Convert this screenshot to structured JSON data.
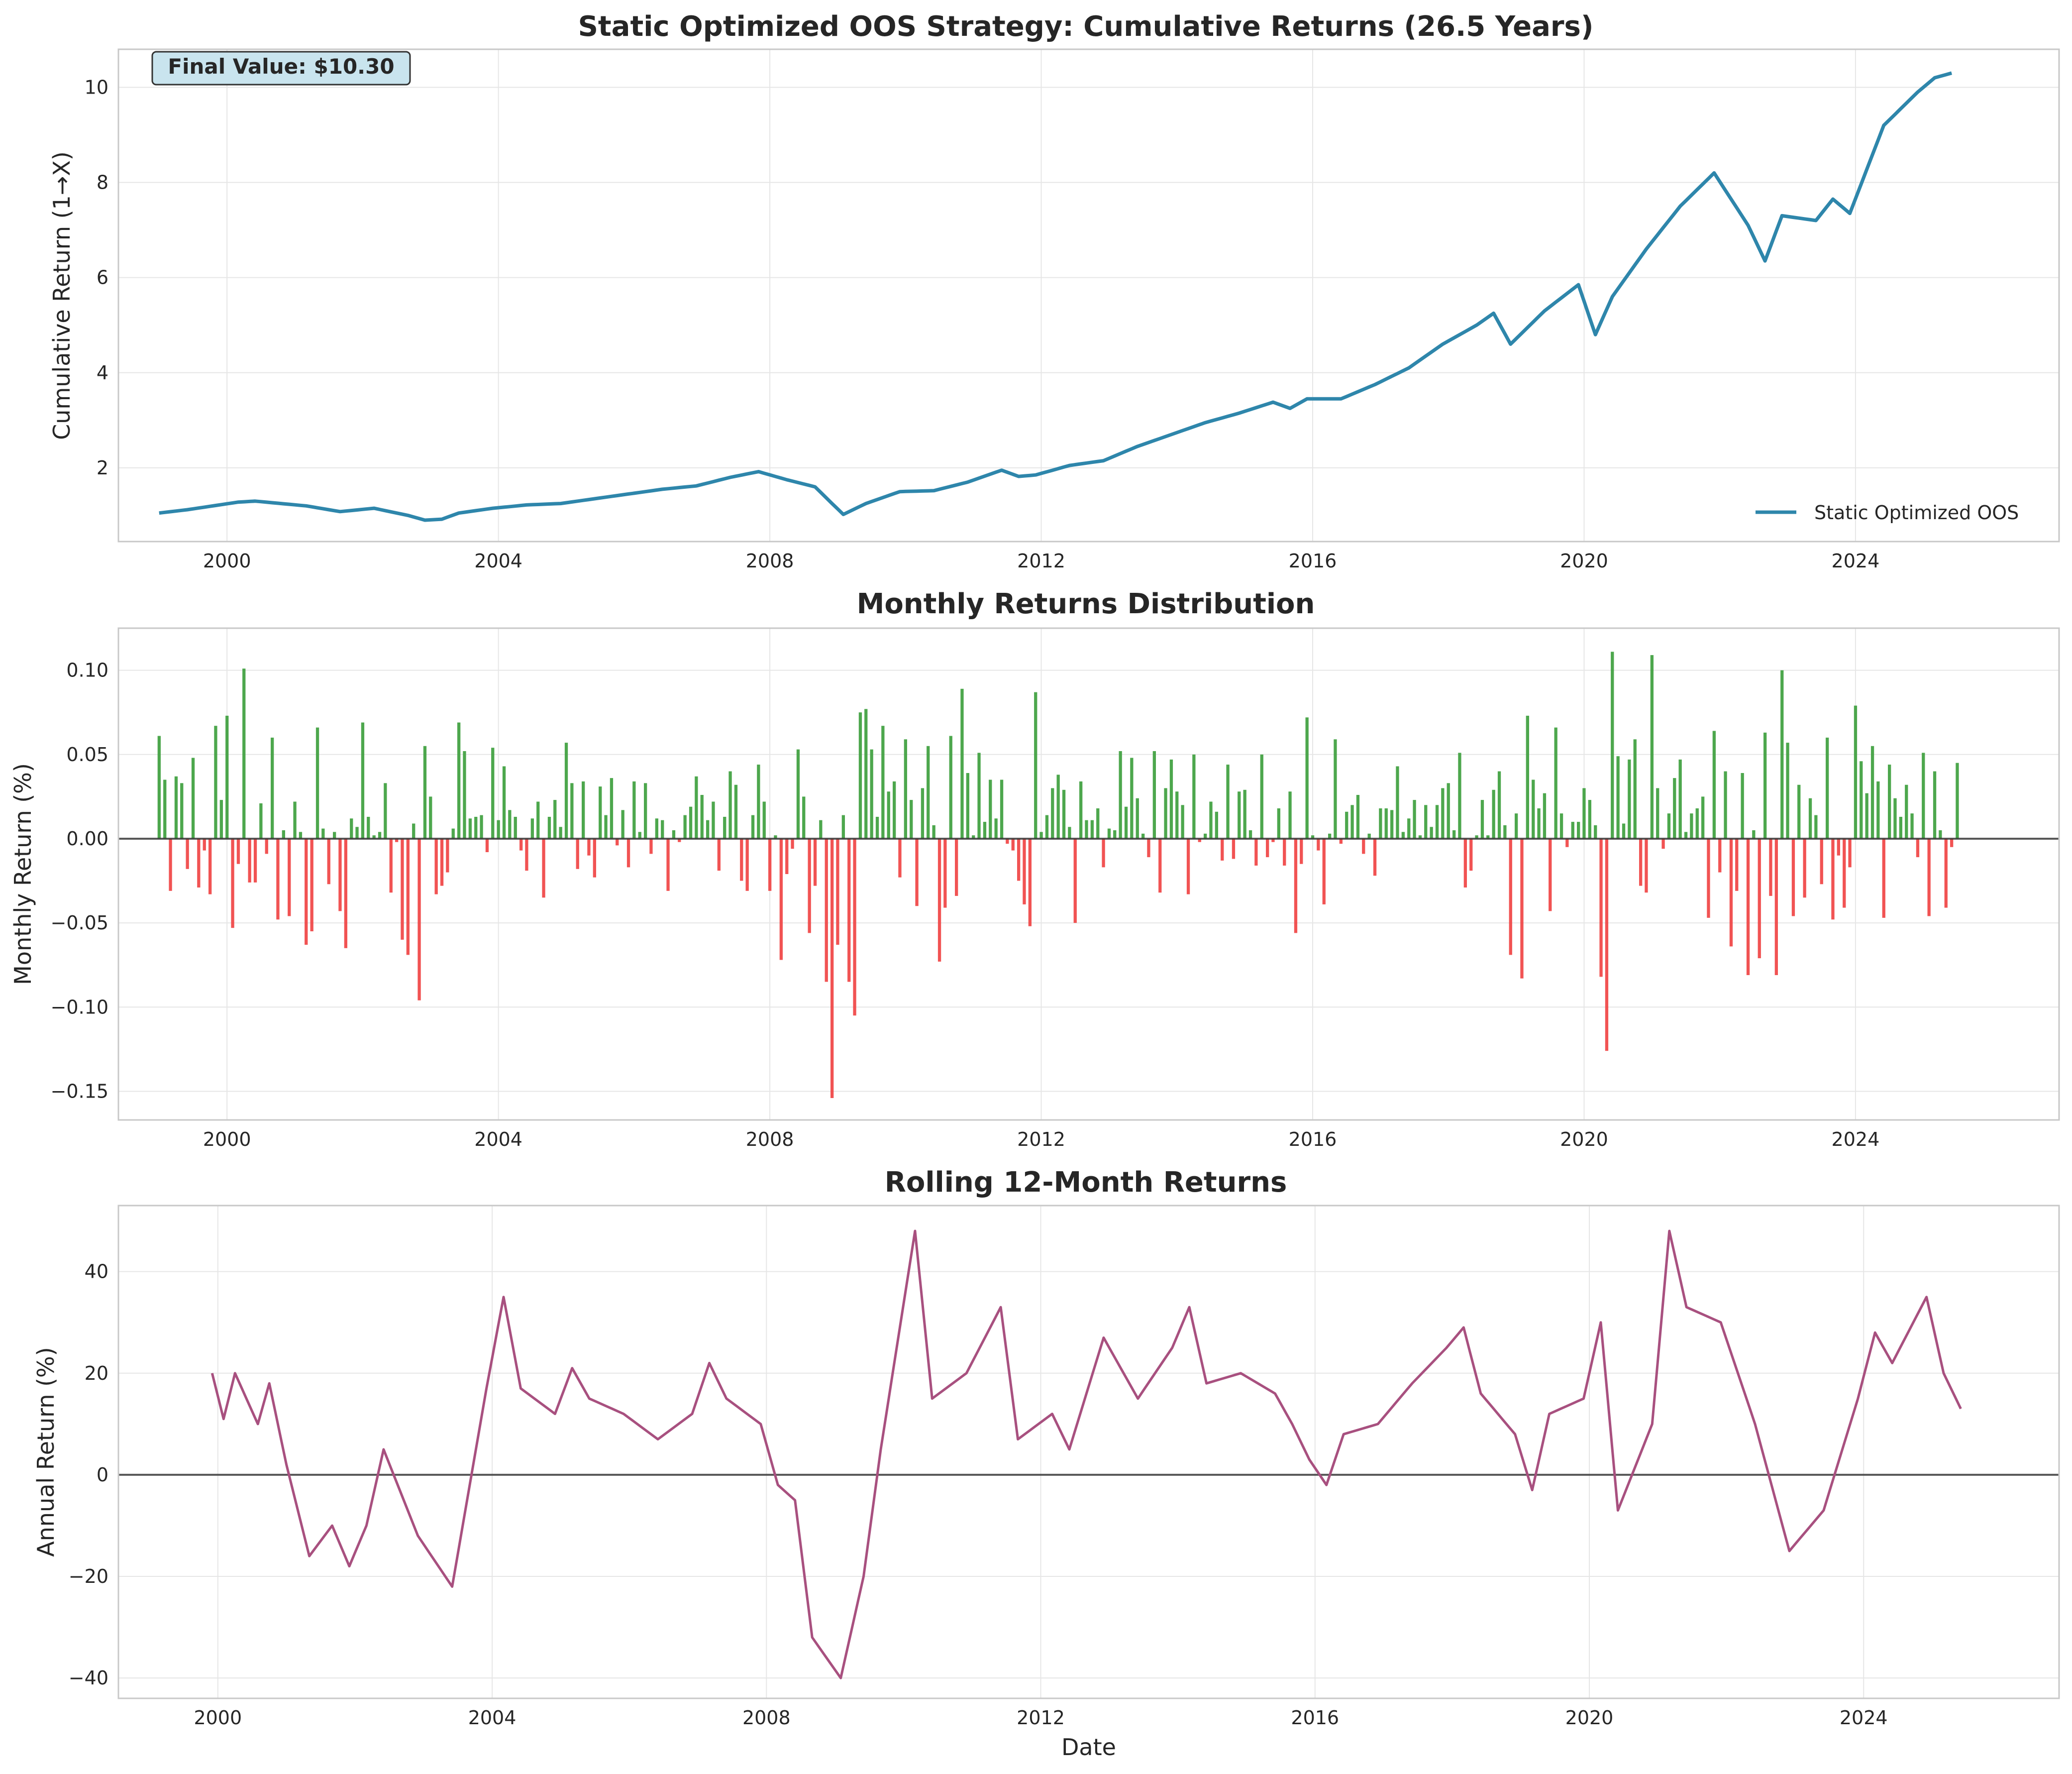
{
  "colors": {
    "cumulative_line": "#2e86ab",
    "positive_bar": "#3a9d3a",
    "negative_bar": "#f04040",
    "rolling_line": "#a8507f",
    "zero_line": "#333333",
    "annotation_fill": "#c9e4ee"
  },
  "chart_data": [
    {
      "type": "line",
      "title": "Static Optimized OOS Strategy: Cumulative Returns (26.5 Years)",
      "xlabel": "",
      "ylabel": "Cumulative Return (1→X)",
      "x_ticks": [
        "2000",
        "2004",
        "2008",
        "2012",
        "2016",
        "2020",
        "2024"
      ],
      "y_ticks": [
        "2",
        "4",
        "6",
        "8",
        "10"
      ],
      "xlim": [
        1998.4,
        2027.0
      ],
      "ylim": [
        0.45,
        10.8
      ],
      "grid": true,
      "legend": {
        "position": "lower-right",
        "entries": [
          "Static Optimized OOS"
        ]
      },
      "annotation": "Final Value: $10.30",
      "series": [
        {
          "name": "Static Optimized OOS",
          "x_start": "1999-01",
          "frequency": "monthly",
          "keypoints": [
            [
              "1999-01",
              1.05
            ],
            [
              "1999-06",
              1.12
            ],
            [
              "2000-03",
              1.28
            ],
            [
              "2000-06",
              1.3
            ],
            [
              "2001-03",
              1.2
            ],
            [
              "2001-09",
              1.08
            ],
            [
              "2002-03",
              1.15
            ],
            [
              "2002-09",
              1.0
            ],
            [
              "2002-12",
              0.9
            ],
            [
              "2003-03",
              0.92
            ],
            [
              "2003-06",
              1.05
            ],
            [
              "2003-12",
              1.15
            ],
            [
              "2004-06",
              1.22
            ],
            [
              "2004-12",
              1.25
            ],
            [
              "2005-06",
              1.35
            ],
            [
              "2005-12",
              1.45
            ],
            [
              "2006-06",
              1.55
            ],
            [
              "2006-12",
              1.62
            ],
            [
              "2007-06",
              1.8
            ],
            [
              "2007-11",
              1.92
            ],
            [
              "2008-04",
              1.75
            ],
            [
              "2008-09",
              1.6
            ],
            [
              "2008-12",
              1.25
            ],
            [
              "2009-02",
              1.02
            ],
            [
              "2009-06",
              1.25
            ],
            [
              "2009-12",
              1.5
            ],
            [
              "2010-06",
              1.52
            ],
            [
              "2010-12",
              1.7
            ],
            [
              "2011-06",
              1.95
            ],
            [
              "2011-09",
              1.82
            ],
            [
              "2011-12",
              1.85
            ],
            [
              "2012-06",
              2.05
            ],
            [
              "2012-12",
              2.15
            ],
            [
              "2013-06",
              2.45
            ],
            [
              "2013-12",
              2.7
            ],
            [
              "2014-06",
              2.95
            ],
            [
              "2014-12",
              3.15
            ],
            [
              "2015-06",
              3.38
            ],
            [
              "2015-09",
              3.25
            ],
            [
              "2015-12",
              3.45
            ],
            [
              "2016-06",
              3.45
            ],
            [
              "2016-12",
              3.75
            ],
            [
              "2017-06",
              4.1
            ],
            [
              "2017-12",
              4.6
            ],
            [
              "2018-06",
              5.0
            ],
            [
              "2018-09",
              5.25
            ],
            [
              "2018-12",
              4.6
            ],
            [
              "2019-06",
              5.3
            ],
            [
              "2019-12",
              5.85
            ],
            [
              "2020-03",
              4.8
            ],
            [
              "2020-06",
              5.6
            ],
            [
              "2020-12",
              6.6
            ],
            [
              "2021-06",
              7.5
            ],
            [
              "2021-12",
              8.2
            ],
            [
              "2022-06",
              7.1
            ],
            [
              "2022-09",
              6.35
            ],
            [
              "2022-12",
              7.3
            ],
            [
              "2023-06",
              7.2
            ],
            [
              "2023-09",
              7.65
            ],
            [
              "2023-12",
              7.35
            ],
            [
              "2024-06",
              9.2
            ],
            [
              "2024-12",
              9.9
            ],
            [
              "2025-03",
              10.2
            ],
            [
              "2025-06",
              10.3
            ]
          ]
        }
      ]
    },
    {
      "type": "bar",
      "title": "Monthly Returns Distribution",
      "xlabel": "",
      "ylabel": "Monthly Return (%)",
      "x_ticks": [
        "2000",
        "2004",
        "2008",
        "2012",
        "2016",
        "2020",
        "2024"
      ],
      "y_ticks": [
        "−0.15",
        "−0.10",
        "−0.05",
        "0.00",
        "0.05",
        "0.10"
      ],
      "xlim": [
        1998.4,
        2027.0
      ],
      "ylim": [
        -0.167,
        0.125
      ],
      "grid": true,
      "x_start": "1999-01",
      "frequency": "monthly",
      "values": [
        0.061,
        0.035,
        -0.031,
        0.037,
        0.033,
        -0.018,
        0.048,
        -0.029,
        -0.007,
        -0.033,
        0.067,
        0.023,
        0.073,
        -0.053,
        -0.015,
        0.101,
        -0.026,
        -0.026,
        0.021,
        -0.009,
        0.06,
        -0.048,
        0.005,
        -0.046,
        0.022,
        0.004,
        -0.063,
        -0.055,
        0.066,
        0.006,
        -0.027,
        0.004,
        -0.043,
        -0.065,
        0.012,
        0.007,
        0.069,
        0.013,
        0.002,
        0.004,
        0.033,
        -0.032,
        -0.002,
        -0.06,
        -0.069,
        0.009,
        -0.096,
        0.055,
        0.025,
        -0.033,
        -0.028,
        -0.02,
        0.006,
        0.069,
        0.052,
        0.012,
        0.013,
        0.014,
        -0.008,
        0.054,
        0.011,
        0.043,
        0.017,
        0.013,
        -0.007,
        -0.019,
        0.012,
        0.022,
        -0.035,
        0.013,
        0.023,
        0.007,
        0.057,
        0.033,
        -0.018,
        0.034,
        -0.01,
        -0.023,
        0.031,
        0.014,
        0.036,
        -0.004,
        0.017,
        -0.017,
        0.034,
        0.004,
        0.033,
        -0.009,
        0.012,
        0.011,
        -0.031,
        0.005,
        -0.002,
        0.014,
        0.019,
        0.037,
        0.026,
        0.011,
        0.022,
        -0.019,
        0.013,
        0.04,
        0.032,
        -0.025,
        -0.031,
        0.014,
        0.044,
        0.022,
        -0.031,
        0.002,
        -0.072,
        -0.021,
        -0.006,
        0.053,
        0.025,
        -0.056,
        -0.028,
        0.011,
        -0.085,
        -0.154,
        -0.063,
        0.014,
        -0.085,
        -0.105,
        0.075,
        0.077,
        0.053,
        0.013,
        0.067,
        0.028,
        0.034,
        -0.023,
        0.059,
        0.023,
        -0.04,
        0.03,
        0.055,
        0.008,
        -0.073,
        -0.041,
        0.061,
        -0.034,
        0.089,
        0.039,
        0.002,
        0.051,
        0.01,
        0.035,
        0.012,
        0.035,
        -0.003,
        -0.007,
        -0.025,
        -0.039,
        -0.052,
        0.087,
        0.004,
        0.014,
        0.03,
        0.038,
        0.029,
        0.007,
        -0.05,
        0.034,
        0.011,
        0.011,
        0.018,
        -0.017,
        0.006,
        0.005,
        0.052,
        0.019,
        0.048,
        0.024,
        0.003,
        -0.011,
        0.052,
        -0.032,
        0.03,
        0.047,
        0.028,
        0.02,
        -0.033,
        0.05,
        -0.002,
        0.003,
        0.022,
        0.016,
        -0.013,
        0.044,
        -0.012,
        0.028,
        0.029,
        0.005,
        -0.016,
        0.05,
        -0.011,
        -0.002,
        0.018,
        -0.016,
        0.028,
        -0.056,
        -0.015,
        0.072,
        0.002,
        -0.007,
        -0.039,
        0.003,
        0.059,
        -0.003,
        0.016,
        0.02,
        0.026,
        -0.009,
        0.003,
        -0.022,
        0.018,
        0.018,
        0.017,
        0.043,
        0.004,
        0.012,
        0.023,
        0.002,
        0.02,
        0.007,
        0.02,
        0.03,
        0.033,
        0.005,
        0.051,
        -0.029,
        -0.019,
        0.002,
        0.023,
        0.002,
        0.029,
        0.04,
        0.008,
        -0.069,
        0.015,
        -0.083,
        0.073,
        0.035,
        0.018,
        0.027,
        -0.043,
        0.066,
        0.015,
        -0.005,
        0.01,
        0.01,
        0.03,
        0.023,
        0.008,
        -0.082,
        -0.126,
        0.111,
        0.049,
        0.009,
        0.047,
        0.059,
        -0.028,
        -0.032,
        0.109,
        0.03,
        -0.006,
        0.015,
        0.036,
        0.047,
        0.004,
        0.015,
        0.018,
        0.025,
        -0.047,
        0.064,
        -0.02,
        0.04,
        -0.064,
        -0.031,
        0.039,
        -0.081,
        0.005,
        -0.071,
        0.063,
        -0.034,
        -0.081,
        0.1,
        0.057,
        -0.046,
        0.032,
        -0.035,
        0.024,
        0.014,
        -0.027,
        0.06,
        -0.048,
        -0.01,
        -0.041,
        -0.017,
        0.079,
        0.046,
        0.027,
        0.055,
        0.034,
        -0.047,
        0.044,
        0.024,
        0.013,
        0.032,
        0.015,
        -0.011,
        0.051,
        -0.046,
        0.04,
        0.005,
        -0.041,
        -0.005,
        0.045
      ]
    },
    {
      "type": "line",
      "title": "Rolling 12-Month Returns",
      "xlabel": "Date",
      "ylabel": "Annual Return (%)",
      "x_ticks": [
        "2000",
        "2004",
        "2008",
        "2012",
        "2016",
        "2020",
        "2024"
      ],
      "y_ticks": [
        "−40",
        "−20",
        "0",
        "20",
        "40"
      ],
      "xlim": [
        1998.55,
        2026.85
      ],
      "ylim": [
        -44,
        53
      ],
      "grid": true,
      "series": [
        {
          "x_start": "1999-12",
          "frequency": "monthly",
          "keypoints": [
            [
              "1999-12",
              20
            ],
            [
              "2000-02",
              11
            ],
            [
              "2000-04",
              20
            ],
            [
              "2000-08",
              10
            ],
            [
              "2000-10",
              18
            ],
            [
              "2001-01",
              2
            ],
            [
              "2001-05",
              -16
            ],
            [
              "2001-09",
              -10
            ],
            [
              "2001-12",
              -18
            ],
            [
              "2002-03",
              -10
            ],
            [
              "2002-06",
              5
            ],
            [
              "2002-12",
              -12
            ],
            [
              "2003-06",
              -22
            ],
            [
              "2003-12",
              17
            ],
            [
              "2004-03",
              35
            ],
            [
              "2004-06",
              17
            ],
            [
              "2004-12",
              12
            ],
            [
              "2005-03",
              21
            ],
            [
              "2005-06",
              15
            ],
            [
              "2005-12",
              12
            ],
            [
              "2006-06",
              7
            ],
            [
              "2006-12",
              12
            ],
            [
              "2007-03",
              22
            ],
            [
              "2007-06",
              15
            ],
            [
              "2007-12",
              10
            ],
            [
              "2008-03",
              -2
            ],
            [
              "2008-06",
              -5
            ],
            [
              "2008-09",
              -32
            ],
            [
              "2009-02",
              -40
            ],
            [
              "2009-06",
              -20
            ],
            [
              "2009-09",
              5
            ],
            [
              "2010-03",
              48
            ],
            [
              "2010-06",
              15
            ],
            [
              "2010-12",
              20
            ],
            [
              "2011-06",
              33
            ],
            [
              "2011-09",
              7
            ],
            [
              "2012-03",
              12
            ],
            [
              "2012-06",
              5
            ],
            [
              "2012-12",
              27
            ],
            [
              "2013-06",
              15
            ],
            [
              "2013-12",
              25
            ],
            [
              "2014-03",
              33
            ],
            [
              "2014-06",
              18
            ],
            [
              "2014-12",
              20
            ],
            [
              "2015-06",
              16
            ],
            [
              "2015-09",
              10
            ],
            [
              "2015-12",
              3
            ],
            [
              "2016-03",
              -2
            ],
            [
              "2016-06",
              8
            ],
            [
              "2016-12",
              10
            ],
            [
              "2017-06",
              18
            ],
            [
              "2017-12",
              25
            ],
            [
              "2018-03",
              29
            ],
            [
              "2018-06",
              16
            ],
            [
              "2018-12",
              8
            ],
            [
              "2019-03",
              -3
            ],
            [
              "2019-06",
              12
            ],
            [
              "2019-12",
              15
            ],
            [
              "2020-03",
              30
            ],
            [
              "2020-06",
              -7
            ],
            [
              "2020-12",
              10
            ],
            [
              "2021-03",
              48
            ],
            [
              "2021-06",
              33
            ],
            [
              "2021-12",
              30
            ],
            [
              "2022-06",
              10
            ],
            [
              "2022-12",
              -15
            ],
            [
              "2023-06",
              -7
            ],
            [
              "2023-12",
              15
            ],
            [
              "2024-03",
              28
            ],
            [
              "2024-06",
              22
            ],
            [
              "2024-12",
              35
            ],
            [
              "2025-03",
              20
            ],
            [
              "2025-06",
              13
            ]
          ]
        }
      ]
    }
  ]
}
